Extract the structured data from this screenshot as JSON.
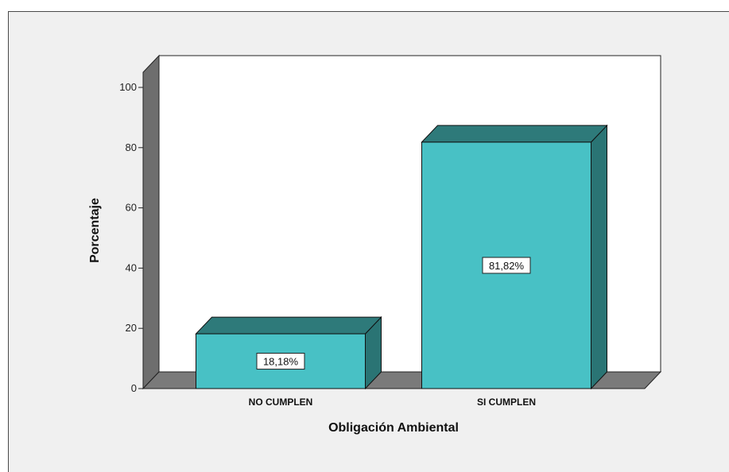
{
  "chart_data": {
    "type": "bar",
    "categories": [
      "NO CUMPLEN",
      "SI CUMPLEN"
    ],
    "values": [
      18.18,
      81.82
    ],
    "data_labels": [
      "18,18%",
      "81,82%"
    ],
    "xlabel": "Obligación Ambiental",
    "ylabel": "Porcentaje",
    "ylim": [
      0,
      100
    ],
    "yticks": [
      "0",
      "20",
      "40",
      "60",
      "80",
      "100"
    ],
    "grid": false,
    "legend": "none",
    "colors": {
      "bar_front": "#48c1c5",
      "bar_top": "#2e7a7a",
      "bar_side": "#2a7474",
      "wall": "#6e6e6e",
      "floor": "#7a7a7a",
      "plot_bg": "#ffffff",
      "chart_bg": "#f0f0f0"
    }
  }
}
